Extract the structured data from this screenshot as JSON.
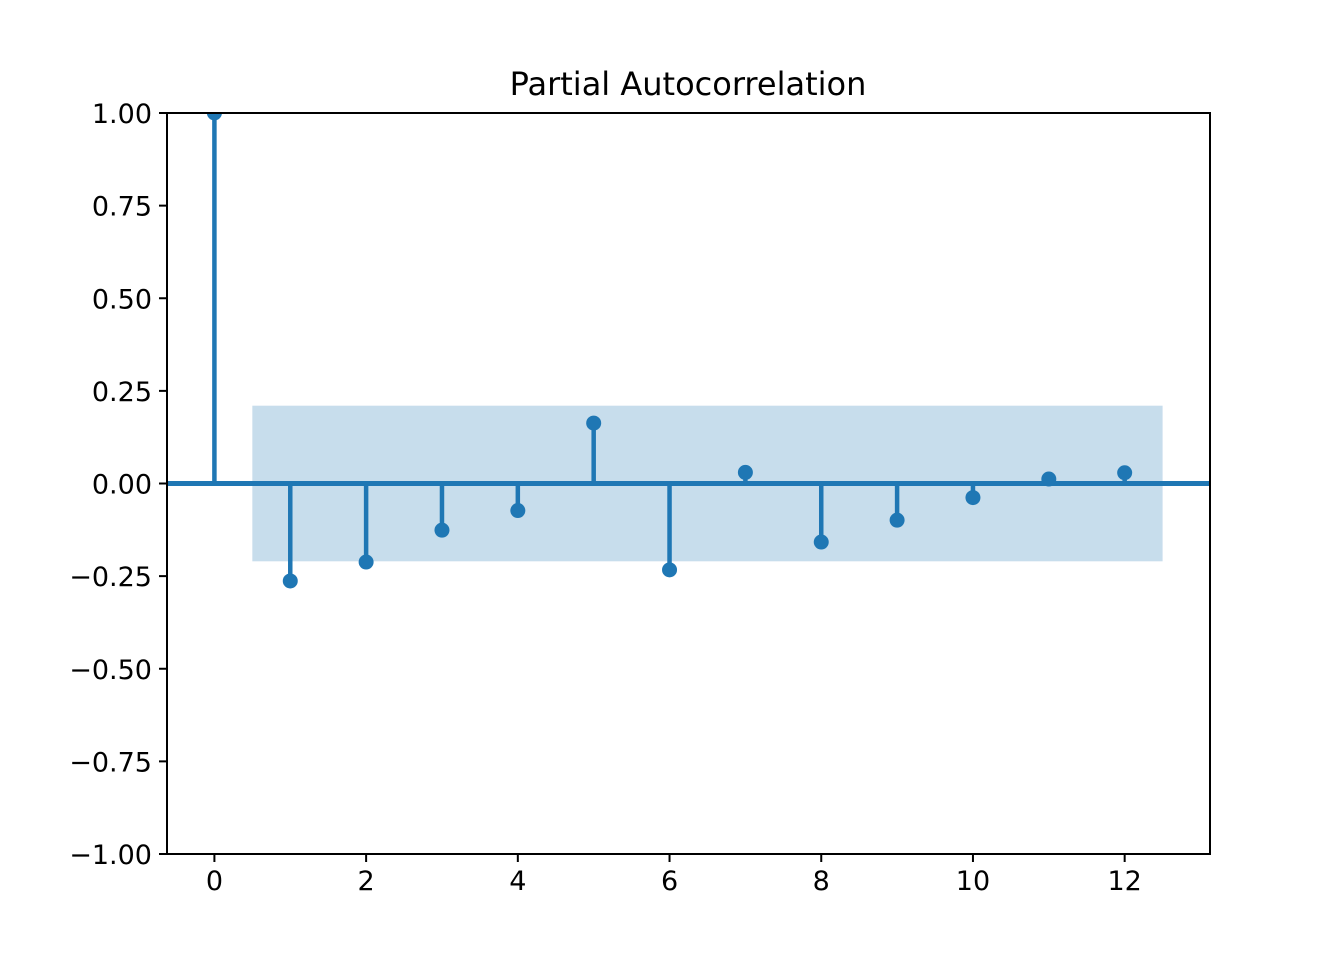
{
  "chart_data": {
    "type": "stem",
    "title": "Partial Autocorrelation",
    "x": [
      0,
      1,
      2,
      3,
      4,
      5,
      6,
      7,
      8,
      9,
      10,
      11,
      12
    ],
    "values": [
      1.0,
      -0.263,
      -0.212,
      -0.126,
      -0.073,
      0.163,
      -0.233,
      0.03,
      -0.158,
      -0.099,
      -0.038,
      0.012,
      0.029
    ],
    "confidence_band": {
      "x_start": 0.5,
      "x_end": 12.5,
      "lower": -0.21,
      "upper": 0.21
    },
    "zero_line": 0.0,
    "xlim": [
      -0.625,
      13.125
    ],
    "ylim": [
      -1.0,
      1.0
    ],
    "xticks": [
      0,
      2,
      4,
      6,
      8,
      10,
      12
    ],
    "xtick_labels": [
      "0",
      "2",
      "4",
      "6",
      "8",
      "10",
      "12"
    ],
    "yticks": [
      1.0,
      0.75,
      0.5,
      0.25,
      0.0,
      -0.25,
      -0.5,
      -0.75,
      -1.0
    ],
    "ytick_labels": [
      "1.00",
      "0.75",
      "0.50",
      "0.25",
      "0.00",
      "−0.25",
      "−0.50",
      "−0.75",
      "−1.00"
    ],
    "grid": false,
    "legend_position": "none",
    "colors": {
      "stem": "#1f77b4",
      "marker": "#1f77b4",
      "zero_line": "#1f77b4",
      "band_fill": "#1f77b4",
      "band_opacity": 0.25,
      "spine": "#000000",
      "text": "#000000",
      "background": "#ffffff"
    }
  }
}
